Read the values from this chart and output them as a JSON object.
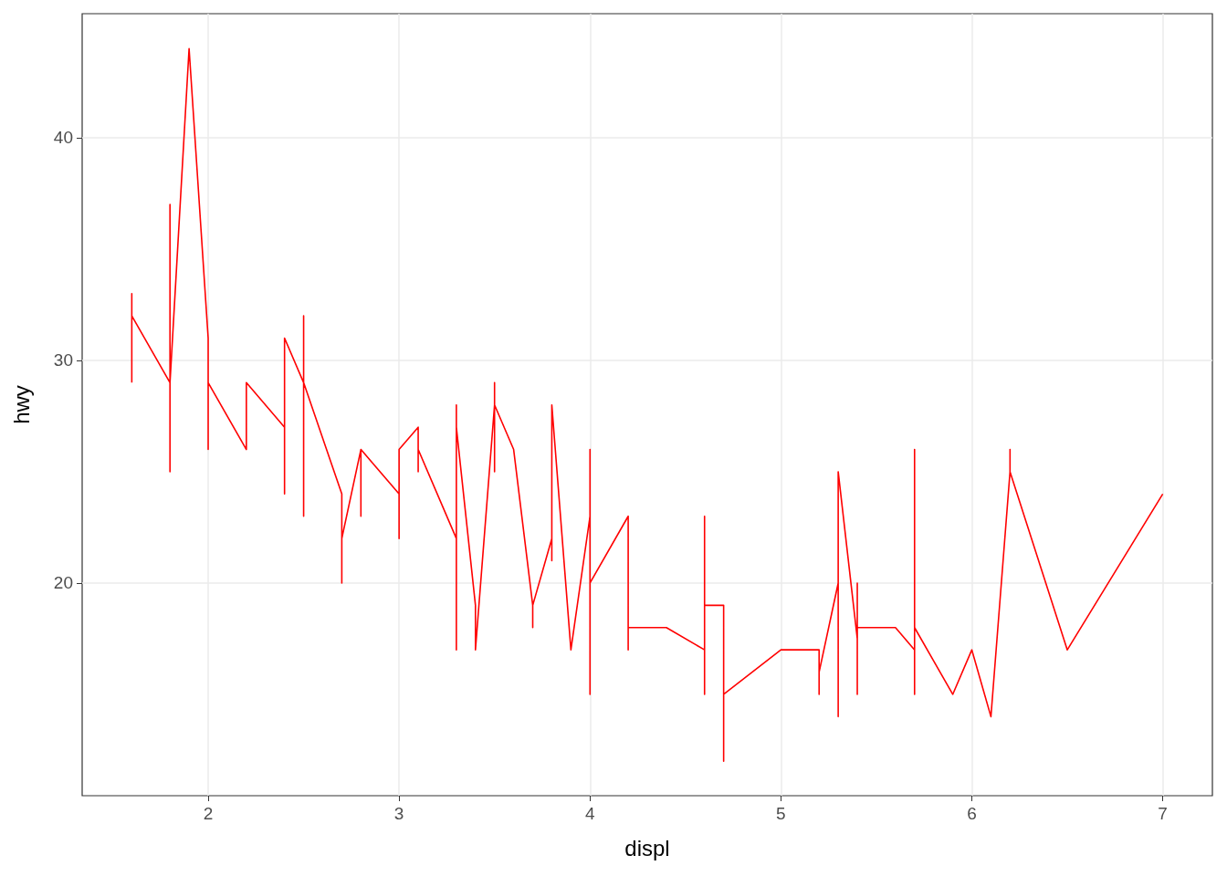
{
  "chart_data": {
    "type": "line",
    "xlabel": "displ",
    "ylabel": "hwy",
    "xlim": [
      1.34,
      7.26
    ],
    "ylim": [
      10.45,
      45.57
    ],
    "xticks": [
      2,
      3,
      4,
      5,
      6,
      7
    ],
    "yticks": [
      20,
      30,
      40
    ],
    "grid": true,
    "marker": "none",
    "line_style": "solid",
    "series": [
      {
        "color": "#ff0000",
        "x": [
          1.6,
          1.6,
          1.6,
          1.8,
          1.8,
          1.8,
          1.8,
          1.9,
          2.0,
          2.0,
          2.0,
          2.2,
          2.2,
          2.4,
          2.4,
          2.4,
          2.5,
          2.5,
          2.5,
          2.5,
          2.7,
          2.7,
          2.7,
          2.8,
          2.8,
          2.8,
          3.0,
          3.0,
          3.0,
          3.1,
          3.1,
          3.1,
          3.3,
          3.3,
          3.3,
          3.3,
          3.4,
          3.4,
          3.5,
          3.5,
          3.5,
          3.5,
          3.6,
          3.7,
          3.7,
          3.7,
          3.8,
          3.8,
          3.8,
          3.9,
          4.0,
          4.0,
          4.0,
          4.0,
          4.2,
          4.2,
          4.2,
          4.4,
          4.6,
          4.6,
          4.6,
          4.6,
          4.7,
          4.7,
          4.7,
          5.0,
          5.2,
          5.2,
          5.2,
          5.3,
          5.3,
          5.3,
          5.4,
          5.4,
          5.4,
          5.4,
          5.6,
          5.7,
          5.7,
          5.7,
          5.7,
          5.9,
          6.0,
          6.1,
          6.2,
          6.2,
          6.2,
          6.5,
          7.0
        ],
        "values": [
          29,
          33,
          32,
          29,
          25,
          37,
          29,
          44,
          31,
          26,
          29,
          26,
          29,
          27,
          24,
          31,
          29,
          23,
          32,
          29,
          24,
          20,
          22,
          26,
          23,
          26,
          24,
          22,
          26,
          27,
          25,
          26,
          22,
          17,
          28,
          27,
          19,
          17,
          28,
          25,
          29,
          28,
          26,
          19,
          18,
          19,
          22,
          21,
          28,
          17,
          23,
          15,
          26,
          20,
          23,
          17,
          18,
          18,
          17,
          15,
          23,
          19,
          19,
          12,
          15,
          17,
          17,
          15,
          16,
          20,
          14,
          25,
          17.5,
          15,
          20,
          18,
          18,
          17,
          15,
          26,
          18,
          15,
          17,
          14,
          25,
          26,
          25,
          17,
          24
        ]
      }
    ]
  }
}
